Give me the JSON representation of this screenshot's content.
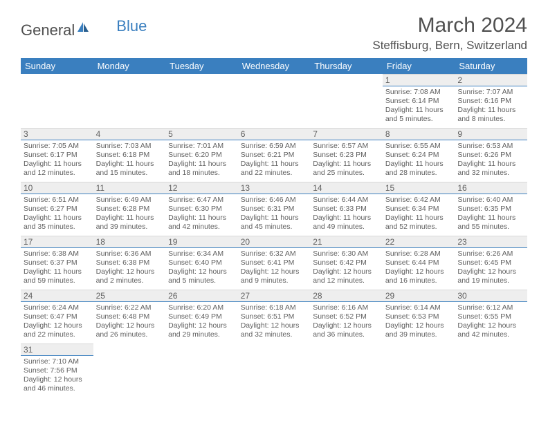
{
  "logo": {
    "text1": "General",
    "text2": "Blue"
  },
  "title": "March 2024",
  "location": "Steffisburg, Bern, Switzerland",
  "headers": [
    "Sunday",
    "Monday",
    "Tuesday",
    "Wednesday",
    "Thursday",
    "Friday",
    "Saturday"
  ],
  "colors": {
    "header_bg": "#3a7fbf",
    "header_fg": "#ffffff",
    "daynum_bg": "#eeeeee",
    "daynum_border_bottom": "#3a7fbf",
    "text": "#606060"
  },
  "grid": [
    [
      null,
      null,
      null,
      null,
      null,
      {
        "n": "1",
        "sr": "Sunrise: 7:08 AM",
        "ss": "Sunset: 6:14 PM",
        "dl": "Daylight: 11 hours and 5 minutes."
      },
      {
        "n": "2",
        "sr": "Sunrise: 7:07 AM",
        "ss": "Sunset: 6:16 PM",
        "dl": "Daylight: 11 hours and 8 minutes."
      }
    ],
    [
      {
        "n": "3",
        "sr": "Sunrise: 7:05 AM",
        "ss": "Sunset: 6:17 PM",
        "dl": "Daylight: 11 hours and 12 minutes."
      },
      {
        "n": "4",
        "sr": "Sunrise: 7:03 AM",
        "ss": "Sunset: 6:18 PM",
        "dl": "Daylight: 11 hours and 15 minutes."
      },
      {
        "n": "5",
        "sr": "Sunrise: 7:01 AM",
        "ss": "Sunset: 6:20 PM",
        "dl": "Daylight: 11 hours and 18 minutes."
      },
      {
        "n": "6",
        "sr": "Sunrise: 6:59 AM",
        "ss": "Sunset: 6:21 PM",
        "dl": "Daylight: 11 hours and 22 minutes."
      },
      {
        "n": "7",
        "sr": "Sunrise: 6:57 AM",
        "ss": "Sunset: 6:23 PM",
        "dl": "Daylight: 11 hours and 25 minutes."
      },
      {
        "n": "8",
        "sr": "Sunrise: 6:55 AM",
        "ss": "Sunset: 6:24 PM",
        "dl": "Daylight: 11 hours and 28 minutes."
      },
      {
        "n": "9",
        "sr": "Sunrise: 6:53 AM",
        "ss": "Sunset: 6:26 PM",
        "dl": "Daylight: 11 hours and 32 minutes."
      }
    ],
    [
      {
        "n": "10",
        "sr": "Sunrise: 6:51 AM",
        "ss": "Sunset: 6:27 PM",
        "dl": "Daylight: 11 hours and 35 minutes."
      },
      {
        "n": "11",
        "sr": "Sunrise: 6:49 AM",
        "ss": "Sunset: 6:28 PM",
        "dl": "Daylight: 11 hours and 39 minutes."
      },
      {
        "n": "12",
        "sr": "Sunrise: 6:47 AM",
        "ss": "Sunset: 6:30 PM",
        "dl": "Daylight: 11 hours and 42 minutes."
      },
      {
        "n": "13",
        "sr": "Sunrise: 6:46 AM",
        "ss": "Sunset: 6:31 PM",
        "dl": "Daylight: 11 hours and 45 minutes."
      },
      {
        "n": "14",
        "sr": "Sunrise: 6:44 AM",
        "ss": "Sunset: 6:33 PM",
        "dl": "Daylight: 11 hours and 49 minutes."
      },
      {
        "n": "15",
        "sr": "Sunrise: 6:42 AM",
        "ss": "Sunset: 6:34 PM",
        "dl": "Daylight: 11 hours and 52 minutes."
      },
      {
        "n": "16",
        "sr": "Sunrise: 6:40 AM",
        "ss": "Sunset: 6:35 PM",
        "dl": "Daylight: 11 hours and 55 minutes."
      }
    ],
    [
      {
        "n": "17",
        "sr": "Sunrise: 6:38 AM",
        "ss": "Sunset: 6:37 PM",
        "dl": "Daylight: 11 hours and 59 minutes."
      },
      {
        "n": "18",
        "sr": "Sunrise: 6:36 AM",
        "ss": "Sunset: 6:38 PM",
        "dl": "Daylight: 12 hours and 2 minutes."
      },
      {
        "n": "19",
        "sr": "Sunrise: 6:34 AM",
        "ss": "Sunset: 6:40 PM",
        "dl": "Daylight: 12 hours and 5 minutes."
      },
      {
        "n": "20",
        "sr": "Sunrise: 6:32 AM",
        "ss": "Sunset: 6:41 PM",
        "dl": "Daylight: 12 hours and 9 minutes."
      },
      {
        "n": "21",
        "sr": "Sunrise: 6:30 AM",
        "ss": "Sunset: 6:42 PM",
        "dl": "Daylight: 12 hours and 12 minutes."
      },
      {
        "n": "22",
        "sr": "Sunrise: 6:28 AM",
        "ss": "Sunset: 6:44 PM",
        "dl": "Daylight: 12 hours and 16 minutes."
      },
      {
        "n": "23",
        "sr": "Sunrise: 6:26 AM",
        "ss": "Sunset: 6:45 PM",
        "dl": "Daylight: 12 hours and 19 minutes."
      }
    ],
    [
      {
        "n": "24",
        "sr": "Sunrise: 6:24 AM",
        "ss": "Sunset: 6:47 PM",
        "dl": "Daylight: 12 hours and 22 minutes."
      },
      {
        "n": "25",
        "sr": "Sunrise: 6:22 AM",
        "ss": "Sunset: 6:48 PM",
        "dl": "Daylight: 12 hours and 26 minutes."
      },
      {
        "n": "26",
        "sr": "Sunrise: 6:20 AM",
        "ss": "Sunset: 6:49 PM",
        "dl": "Daylight: 12 hours and 29 minutes."
      },
      {
        "n": "27",
        "sr": "Sunrise: 6:18 AM",
        "ss": "Sunset: 6:51 PM",
        "dl": "Daylight: 12 hours and 32 minutes."
      },
      {
        "n": "28",
        "sr": "Sunrise: 6:16 AM",
        "ss": "Sunset: 6:52 PM",
        "dl": "Daylight: 12 hours and 36 minutes."
      },
      {
        "n": "29",
        "sr": "Sunrise: 6:14 AM",
        "ss": "Sunset: 6:53 PM",
        "dl": "Daylight: 12 hours and 39 minutes."
      },
      {
        "n": "30",
        "sr": "Sunrise: 6:12 AM",
        "ss": "Sunset: 6:55 PM",
        "dl": "Daylight: 12 hours and 42 minutes."
      }
    ],
    [
      {
        "n": "31",
        "sr": "Sunrise: 7:10 AM",
        "ss": "Sunset: 7:56 PM",
        "dl": "Daylight: 12 hours and 46 minutes."
      },
      null,
      null,
      null,
      null,
      null,
      null
    ]
  ]
}
